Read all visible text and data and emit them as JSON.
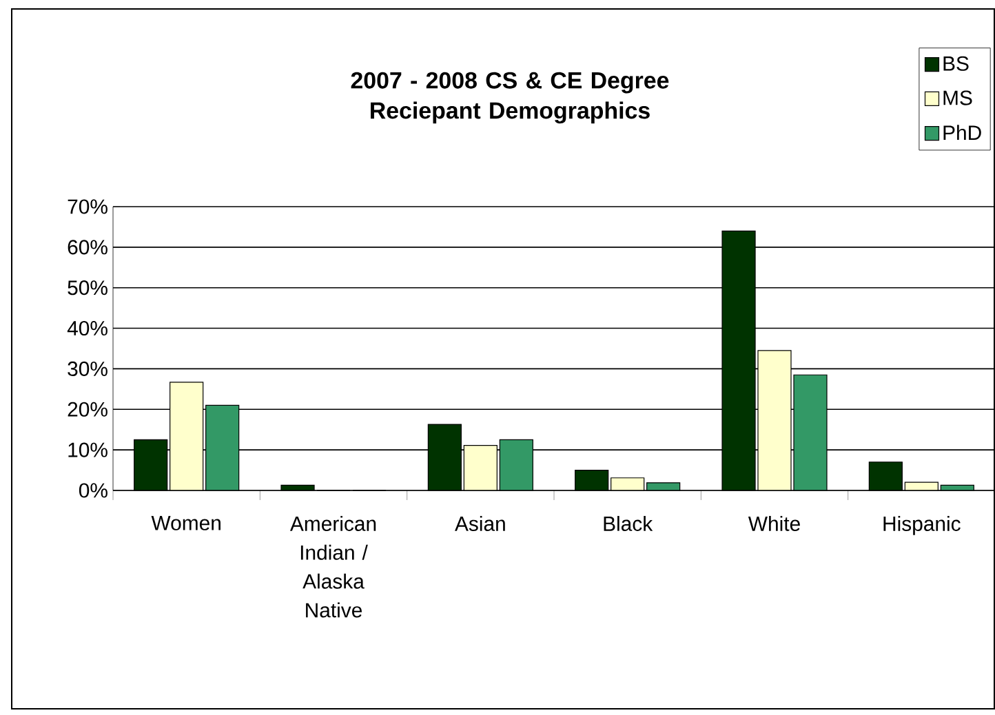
{
  "chart_data": {
    "type": "bar",
    "title": "2007 - 2008 CS & CE Degree Reciepant Demographics",
    "categories": [
      "Women",
      "American Indian / Alaska Native",
      "Asian",
      "Black",
      "White",
      "Hispanic"
    ],
    "series": [
      {
        "name": "BS",
        "color": "#003300",
        "values": [
          12.5,
          1.3,
          16.3,
          5.0,
          64,
          7.0
        ]
      },
      {
        "name": "MS",
        "color": "#ffffcc",
        "values": [
          26.7,
          0,
          11.1,
          3.1,
          34.5,
          2.0
        ]
      },
      {
        "name": "PhD",
        "color": "#339966",
        "values": [
          21,
          0,
          12.5,
          1.9,
          28.5,
          1.3
        ]
      }
    ],
    "ylim": [
      0,
      70
    ],
    "yticks": [
      {
        "value": 0,
        "label": "0%"
      },
      {
        "value": 10,
        "label": "10%"
      },
      {
        "value": 20,
        "label": "20%"
      },
      {
        "value": 30,
        "label": "30%"
      },
      {
        "value": 40,
        "label": "40%"
      },
      {
        "value": 50,
        "label": "50%"
      },
      {
        "value": 60,
        "label": "60%"
      },
      {
        "value": 70,
        "label": "70%"
      }
    ],
    "grid": "y",
    "legend": "top right"
  }
}
